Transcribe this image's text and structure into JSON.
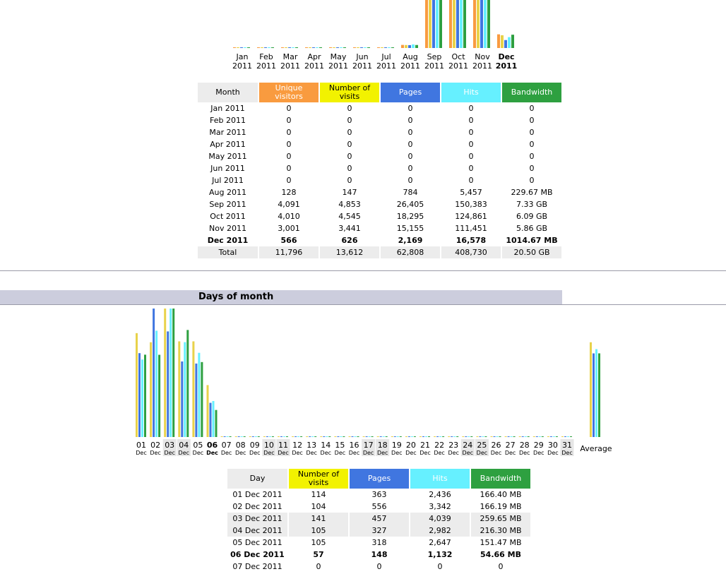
{
  "monthly": {
    "chart_data": {
      "type": "bar",
      "categories": [
        "Jan 2011",
        "Feb 2011",
        "Mar 2011",
        "Apr 2011",
        "May 2011",
        "Jun 2011",
        "Jul 2011",
        "Aug 2011",
        "Sep 2011",
        "Oct 2011",
        "Nov 2011",
        "Dec 2011"
      ],
      "series": [
        {
          "key": "unique",
          "values": [
            0,
            0,
            0,
            0,
            0,
            0,
            0,
            128,
            4091,
            4010,
            3001,
            566
          ],
          "color": "#f99b3f"
        },
        {
          "key": "visits",
          "values": [
            0,
            0,
            0,
            0,
            0,
            0,
            0,
            147,
            4853,
            4545,
            3441,
            626
          ],
          "color": "#e8d24a"
        },
        {
          "key": "pages",
          "values": [
            0,
            0,
            0,
            0,
            0,
            0,
            0,
            784,
            26405,
            18295,
            15155,
            2169
          ],
          "color": "#4076e0"
        },
        {
          "key": "hits",
          "values": [
            0,
            0,
            0,
            0,
            0,
            0,
            0,
            5457,
            150383,
            124861,
            111451,
            16578
          ],
          "color": "#66f0ff"
        },
        {
          "key": "bandwidth_mb",
          "values": [
            0,
            0,
            0,
            0,
            0,
            0,
            0,
            229.67,
            7505.9,
            6236.2,
            6000.6,
            1014.67
          ],
          "color": "#2ea040"
        }
      ]
    },
    "axis_labels": [
      {
        "m": "Jan",
        "y": "2011"
      },
      {
        "m": "Feb",
        "y": "2011"
      },
      {
        "m": "Mar",
        "y": "2011"
      },
      {
        "m": "Apr",
        "y": "2011"
      },
      {
        "m": "May",
        "y": "2011"
      },
      {
        "m": "Jun",
        "y": "2011"
      },
      {
        "m": "Jul",
        "y": "2011"
      },
      {
        "m": "Aug",
        "y": "2011"
      },
      {
        "m": "Sep",
        "y": "2011"
      },
      {
        "m": "Oct",
        "y": "2011"
      },
      {
        "m": "Nov",
        "y": "2011"
      },
      {
        "m": "Dec",
        "y": "2011"
      }
    ],
    "headers": {
      "month": "Month",
      "unique": "Unique visitors",
      "visits": "Number of visits",
      "pages": "Pages",
      "hits": "Hits",
      "bandwidth": "Bandwidth"
    },
    "rows": [
      [
        "Jan 2011",
        "0",
        "0",
        "0",
        "0",
        "0"
      ],
      [
        "Feb 2011",
        "0",
        "0",
        "0",
        "0",
        "0"
      ],
      [
        "Mar 2011",
        "0",
        "0",
        "0",
        "0",
        "0"
      ],
      [
        "Apr 2011",
        "0",
        "0",
        "0",
        "0",
        "0"
      ],
      [
        "May 2011",
        "0",
        "0",
        "0",
        "0",
        "0"
      ],
      [
        "Jun 2011",
        "0",
        "0",
        "0",
        "0",
        "0"
      ],
      [
        "Jul 2011",
        "0",
        "0",
        "0",
        "0",
        "0"
      ],
      [
        "Aug 2011",
        "128",
        "147",
        "784",
        "5,457",
        "229.67 MB"
      ],
      [
        "Sep 2011",
        "4,091",
        "4,853",
        "26,405",
        "150,383",
        "7.33 GB"
      ],
      [
        "Oct 2011",
        "4,010",
        "4,545",
        "18,295",
        "124,861",
        "6.09 GB"
      ],
      [
        "Nov 2011",
        "3,001",
        "3,441",
        "15,155",
        "111,451",
        "5.86 GB"
      ],
      [
        "Dec 2011",
        "566",
        "626",
        "2,169",
        "16,578",
        "1014.67 MB"
      ]
    ],
    "total": [
      "Total",
      "11,796",
      "13,612",
      "62,808",
      "408,730",
      "20.50 GB"
    ]
  },
  "days_section": {
    "title": "Days of month",
    "average_label": "Average",
    "chart_data": {
      "type": "bar",
      "categories": [
        "01",
        "02",
        "03",
        "04",
        "05",
        "06",
        "07",
        "08",
        "09",
        "10",
        "11",
        "12",
        "13",
        "14",
        "15",
        "16",
        "17",
        "18",
        "19",
        "20",
        "21",
        "22",
        "23",
        "24",
        "25",
        "26",
        "27",
        "28",
        "29",
        "30",
        "31"
      ],
      "series": [
        {
          "key": "visits",
          "values": [
            114,
            104,
            141,
            105,
            105,
            57,
            0,
            0,
            0,
            0,
            0,
            0,
            0,
            0,
            0,
            0,
            0,
            0,
            0,
            0,
            0,
            0,
            0,
            0,
            0,
            0,
            0,
            0,
            0,
            0,
            0
          ],
          "color": "#e8d24a"
        },
        {
          "key": "pages",
          "values": [
            363,
            556,
            457,
            327,
            318,
            148,
            0,
            0,
            0,
            0,
            0,
            0,
            0,
            0,
            0,
            0,
            0,
            0,
            0,
            0,
            0,
            0,
            0,
            0,
            0,
            0,
            0,
            0,
            0,
            0,
            0
          ],
          "color": "#4076e0"
        },
        {
          "key": "hits",
          "values": [
            2436,
            3342,
            4039,
            2982,
            2647,
            1132,
            0,
            0,
            0,
            0,
            0,
            0,
            0,
            0,
            0,
            0,
            0,
            0,
            0,
            0,
            0,
            0,
            0,
            0,
            0,
            0,
            0,
            0,
            0,
            0,
            0
          ],
          "color": "#66f0ff"
        },
        {
          "key": "bandwidth_mb",
          "values": [
            166.4,
            166.19,
            259.65,
            216.3,
            151.47,
            54.66,
            0,
            0,
            0,
            0,
            0,
            0,
            0,
            0,
            0,
            0,
            0,
            0,
            0,
            0,
            0,
            0,
            0,
            0,
            0,
            0,
            0,
            0,
            0,
            0,
            0
          ],
          "color": "#2ea040"
        }
      ],
      "average": {
        "visits": 104,
        "pages": 362,
        "hits": 2763,
        "bandwidth_mb": 169.1
      }
    },
    "month_abbr": "Dec",
    "weekend_days": [
      "03",
      "04",
      "10",
      "11",
      "17",
      "18",
      "24",
      "25",
      "31"
    ],
    "current_day": "06",
    "headers": {
      "day": "Day",
      "visits": "Number of visits",
      "pages": "Pages",
      "hits": "Hits",
      "bandwidth": "Bandwidth"
    },
    "rows": [
      [
        "01 Dec 2011",
        "114",
        "363",
        "2,436",
        "166.40 MB"
      ],
      [
        "02 Dec 2011",
        "104",
        "556",
        "3,342",
        "166.19 MB"
      ],
      [
        "03 Dec 2011",
        "141",
        "457",
        "4,039",
        "259.65 MB"
      ],
      [
        "04 Dec 2011",
        "105",
        "327",
        "2,982",
        "216.30 MB"
      ],
      [
        "05 Dec 2011",
        "105",
        "318",
        "2,647",
        "151.47 MB"
      ],
      [
        "06 Dec 2011",
        "57",
        "148",
        "1,132",
        "54.66 MB"
      ],
      [
        "07 Dec 2011",
        "0",
        "0",
        "0",
        "0"
      ]
    ]
  }
}
